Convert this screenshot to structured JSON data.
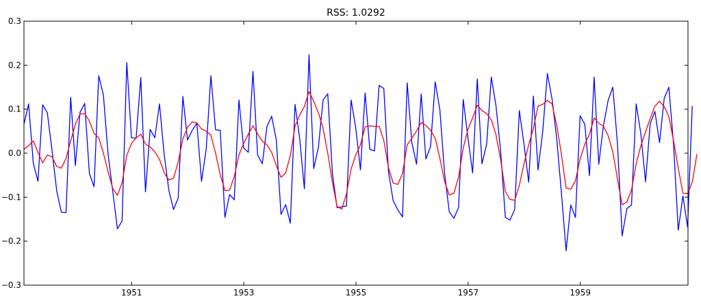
{
  "chart_data": {
    "type": "line",
    "title": "RSS: 1.0292",
    "xlabel": "",
    "ylabel": "",
    "xlim": [
      1949.08,
      1960.92
    ],
    "ylim": [
      -0.3,
      0.3
    ],
    "x_ticks": [
      1951,
      1953,
      1955,
      1957,
      1959
    ],
    "y_ticks": [
      0.3,
      0.2,
      0.1,
      0.0,
      -0.1,
      -0.2,
      -0.3
    ],
    "y_tick_labels": [
      "0.3",
      "0.2",
      "0.1",
      "0.0",
      "−0.1",
      "−0.2",
      "−0.3"
    ],
    "grid": false,
    "legend": "none",
    "x_start": 1949.08,
    "x_step": 0.08333,
    "series": [
      {
        "color": "#0000ff",
        "values": [
          0.066,
          0.112,
          -0.023,
          -0.064,
          0.11,
          0.092,
          0.007,
          -0.085,
          -0.134,
          -0.135,
          0.127,
          -0.028,
          0.093,
          0.113,
          -0.046,
          -0.076,
          0.176,
          0.132,
          -0.002,
          -0.087,
          -0.172,
          -0.154,
          0.206,
          0.035,
          0.034,
          0.172,
          -0.088,
          0.054,
          0.035,
          0.112,
          -0.003,
          -0.084,
          -0.128,
          -0.102,
          0.129,
          0.03,
          0.052,
          0.068,
          -0.064,
          0.01,
          0.176,
          0.053,
          0.052,
          -0.146,
          -0.094,
          -0.106,
          0.121,
          0.012,
          0.002,
          0.186,
          -0.004,
          -0.024,
          0.061,
          0.084,
          0.03,
          -0.139,
          -0.117,
          -0.159,
          0.111,
          0.033,
          -0.081,
          0.224,
          -0.035,
          0.013,
          0.121,
          0.135,
          -0.046,
          -0.124,
          -0.122,
          -0.12,
          0.121,
          0.057,
          -0.038,
          0.137,
          0.009,
          0.005,
          0.154,
          0.147,
          -0.042,
          -0.108,
          -0.129,
          -0.145,
          0.16,
          0.024,
          -0.025,
          0.135,
          -0.013,
          0.015,
          0.162,
          0.098,
          -0.045,
          -0.133,
          -0.148,
          -0.123,
          0.122,
          0.035,
          -0.045,
          0.169,
          -0.024,
          0.02,
          0.173,
          0.108,
          0.005,
          -0.146,
          -0.152,
          -0.128,
          0.097,
          0.02,
          -0.066,
          0.13,
          -0.038,
          0.049,
          0.181,
          0.123,
          0.033,
          -0.09,
          -0.222,
          -0.118,
          -0.146,
          0.085,
          0.066,
          -0.051,
          0.173,
          -0.025,
          0.063,
          0.12,
          0.15,
          0.021,
          -0.188,
          -0.126,
          -0.118,
          0.112,
          0.044,
          -0.065,
          0.067,
          0.095,
          0.024,
          0.125,
          0.15,
          0.02,
          -0.175,
          -0.097,
          -0.168,
          0.107
        ]
      },
      {
        "color": "#ff0000",
        "values": [
          0.009,
          0.017,
          0.028,
          0.002,
          -0.022,
          -0.004,
          -0.008,
          -0.03,
          -0.034,
          -0.012,
          0.028,
          0.066,
          0.089,
          0.09,
          0.073,
          0.045,
          0.035,
          0.0,
          -0.042,
          -0.08,
          -0.096,
          -0.067,
          -0.005,
          0.022,
          0.035,
          0.043,
          0.021,
          0.014,
          0.003,
          -0.014,
          -0.044,
          -0.061,
          -0.057,
          -0.02,
          0.032,
          0.059,
          0.071,
          0.069,
          0.055,
          0.05,
          0.041,
          0.0,
          -0.049,
          -0.085,
          -0.084,
          -0.053,
          -0.004,
          0.022,
          0.043,
          0.062,
          0.044,
          0.027,
          0.019,
          0.002,
          -0.028,
          -0.055,
          -0.045,
          -0.005,
          0.061,
          0.087,
          0.106,
          0.14,
          0.118,
          0.092,
          0.057,
          0.0,
          -0.066,
          -0.121,
          -0.127,
          -0.093,
          -0.036,
          -0.004,
          0.019,
          0.06,
          0.062,
          0.061,
          0.061,
          0.029,
          -0.033,
          -0.068,
          -0.071,
          -0.046,
          0.019,
          0.034,
          0.05,
          0.07,
          0.063,
          0.052,
          0.034,
          -0.012,
          -0.064,
          -0.095,
          -0.091,
          -0.054,
          0.012,
          0.054,
          0.08,
          0.109,
          0.097,
          0.09,
          0.076,
          0.042,
          -0.015,
          -0.087,
          -0.105,
          -0.107,
          -0.073,
          -0.024,
          0.019,
          0.056,
          0.107,
          0.111,
          0.12,
          0.112,
          0.063,
          -0.002,
          -0.079,
          -0.082,
          -0.063,
          -0.013,
          0.02,
          0.043,
          0.08,
          0.068,
          0.061,
          0.04,
          0.003,
          -0.059,
          -0.117,
          -0.111,
          -0.084,
          -0.024,
          0.017,
          0.048,
          0.079,
          0.107,
          0.118,
          0.106,
          0.083,
          0.028,
          -0.034,
          -0.091,
          -0.092,
          -0.066,
          -0.002
        ]
      }
    ]
  }
}
